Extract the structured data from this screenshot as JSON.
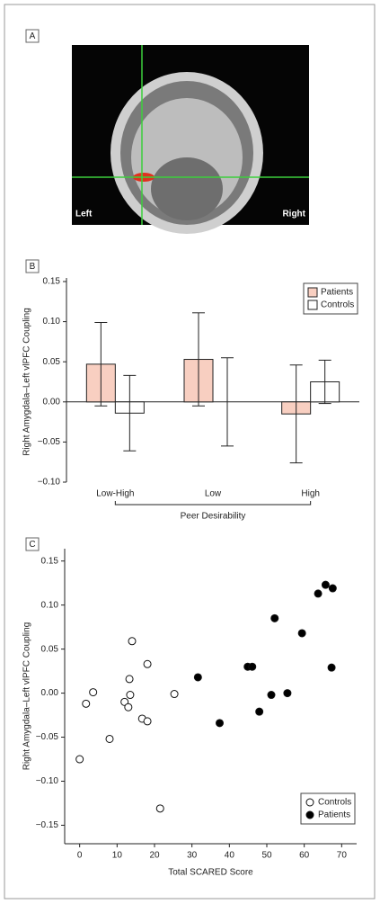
{
  "image_panel": {
    "panel": "A",
    "left_label": "Left",
    "right_label": "Right"
  },
  "chart_data": [
    {
      "type": "bar",
      "panel": "B",
      "y_label": "Right Amygdala–Left vlPFC Coupling",
      "x_label": "Peer Desirability",
      "categories": [
        "Low-High",
        "Low",
        "High"
      ],
      "series": [
        {
          "name": "Patients",
          "color": "#f8cfc1",
          "values": [
            0.047,
            0.053,
            -0.015
          ],
          "errors": [
            0.052,
            0.058,
            0.061
          ]
        },
        {
          "name": "Controls",
          "color": "#ffffff",
          "values": [
            -0.014,
            0.0,
            0.025
          ],
          "errors": [
            0.047,
            0.055,
            0.027
          ]
        }
      ],
      "ylim": [
        -0.1,
        0.15
      ],
      "yticks": [
        0.15,
        {
          "value": 0.1,
          "label": "0.10"
        },
        0.05,
        {
          "value": 0,
          "label": "0.00"
        },
        {
          "value": -0.05,
          "label": "−0.05"
        },
        {
          "value": -0.1,
          "label": "−0.10"
        }
      ],
      "legend": "upper right"
    },
    {
      "type": "scatter",
      "panel": "C",
      "y_label": "Right Amygdala–Left vlPFC Coupling",
      "x_label": "Total SCARED Score",
      "series": [
        {
          "name": "Controls",
          "color": "#ffffff",
          "x": [
            0,
            1.7,
            3.6,
            8,
            12,
            13,
            13.3,
            13.5,
            14,
            16.7,
            18.1,
            18.1,
            21.5,
            25.3
          ],
          "values": [
            -0.075,
            -0.012,
            0.001,
            -0.052,
            -0.01,
            -0.016,
            0.016,
            -0.002,
            0.059,
            -0.029,
            0.033,
            -0.032,
            -0.131,
            -0.001
          ]
        },
        {
          "name": "Patients",
          "color": "#000000",
          "x": [
            31.6,
            37.4,
            44.9,
            46.1,
            48,
            51.2,
            52.1,
            55.5,
            59.4,
            63.7,
            65.7,
            67.6,
            67.3
          ],
          "values": [
            0.018,
            -0.034,
            0.03,
            0.03,
            -0.021,
            -0.002,
            0.085,
            0.0,
            0.068,
            0.113,
            0.123,
            0.119,
            0.029
          ]
        }
      ],
      "xlim": [
        -4,
        74
      ],
      "ylim": [
        -0.171,
        0.164
      ],
      "xticks": [
        0,
        10,
        20,
        30,
        40,
        50,
        60,
        70
      ],
      "yticks": [
        0.15,
        {
          "value": 0.1,
          "label": "0.10"
        },
        0.05,
        {
          "value": 0,
          "label": "0.00"
        },
        {
          "value": -0.05,
          "label": "−0.05"
        },
        {
          "value": -0.1,
          "label": "−0.10"
        },
        {
          "value": -0.15,
          "label": "−0.15"
        }
      ],
      "legend": "lower right"
    }
  ]
}
